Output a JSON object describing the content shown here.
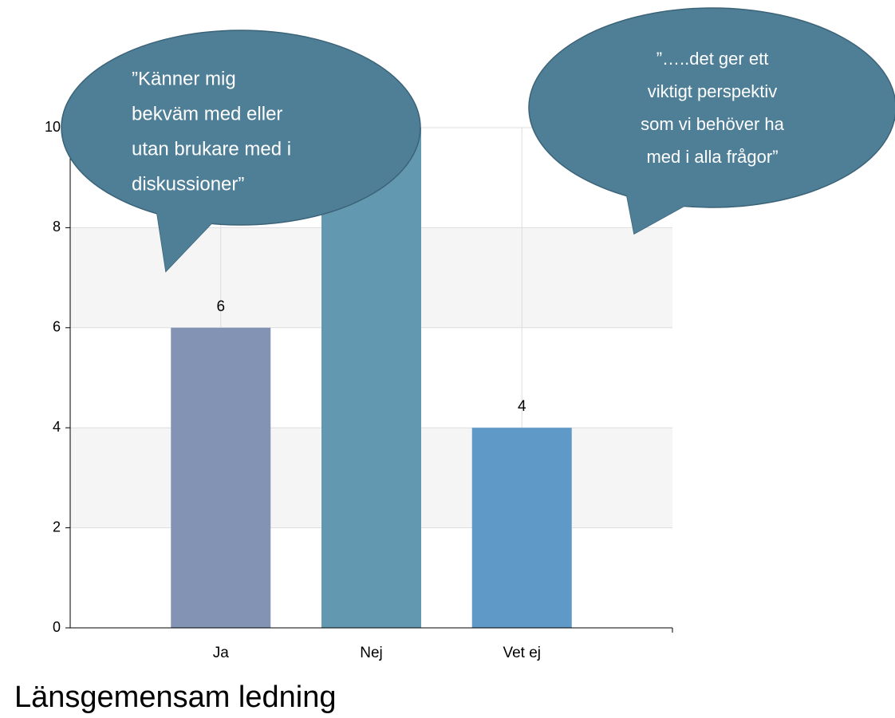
{
  "chart_data": {
    "type": "bar",
    "title": "Länsgemensam ledning",
    "categories": [
      "Ja",
      "Nej",
      "Vet ej"
    ],
    "values": [
      6,
      10,
      4
    ],
    "value_labels": [
      "6",
      null,
      "4"
    ],
    "colors": [
      "#8293b4",
      "#6399b0",
      "#5e99c8"
    ],
    "ylim": [
      0,
      10
    ],
    "yticks": [
      0,
      2,
      4,
      6,
      8,
      10
    ],
    "grid": true,
    "annotations": [
      {
        "lines": [
          "”Känner mig",
          "bekväm med eller",
          "utan brukare med i",
          "diskussioner”"
        ]
      },
      {
        "lines": [
          "”…..det ger ett",
          "viktigt perspektiv",
          "som vi behöver ha",
          "med i alla frågor”"
        ]
      }
    ]
  }
}
